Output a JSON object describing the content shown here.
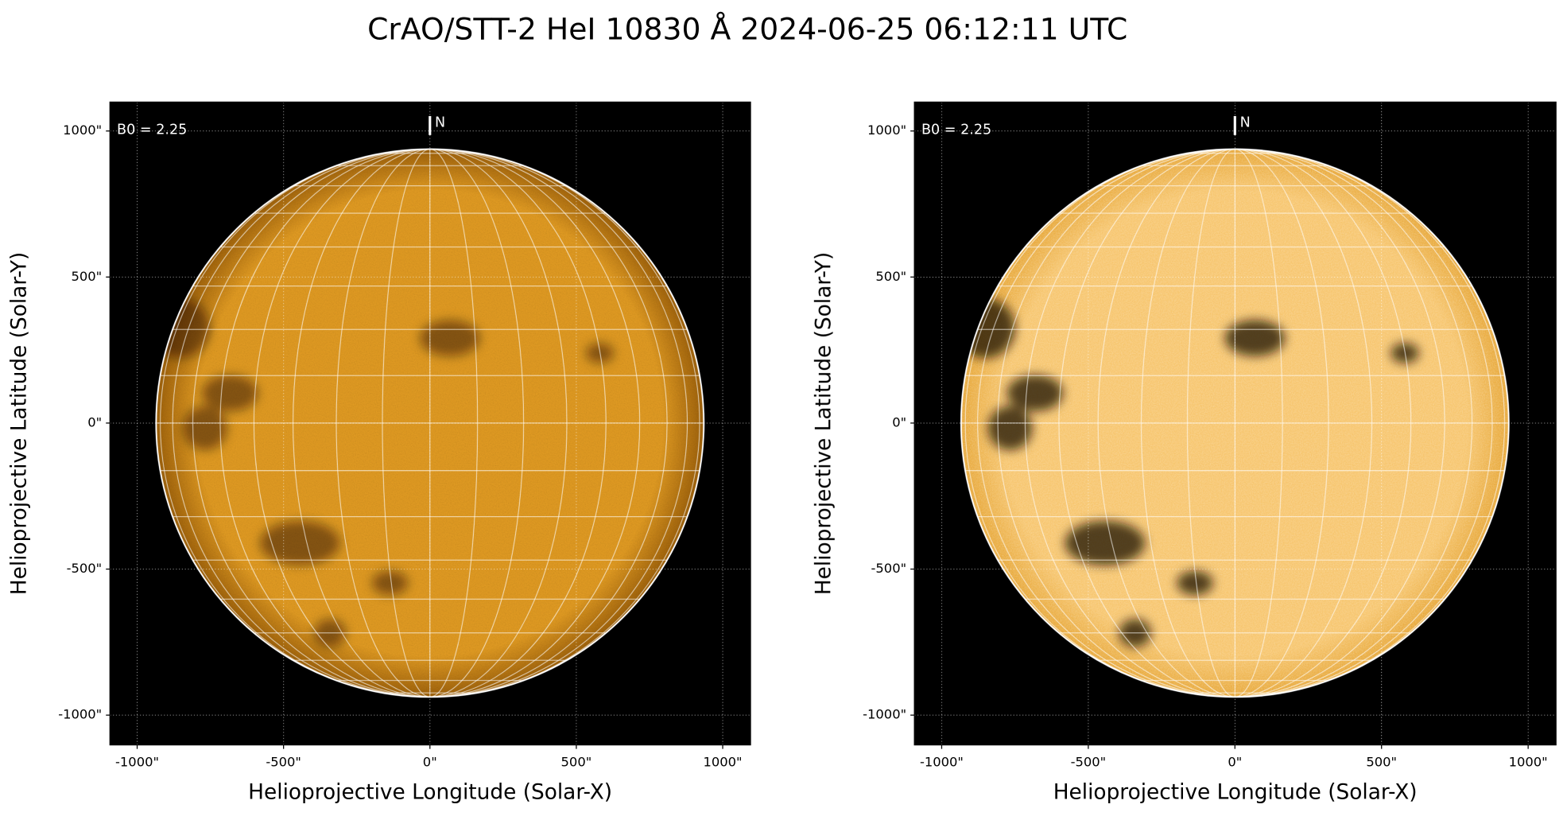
{
  "title": "CrAO/STT-2 HeI 10830 Å 2024-06-25 06:12:11 UTC",
  "chart_data": [
    {
      "type": "image",
      "xlabel": "Helioprojective Longitude (Solar-X)",
      "ylabel": "Helioprojective Latitude (Solar-Y)",
      "annotations": [
        "B0 = 2.25",
        "N"
      ],
      "xlim": [
        -1093,
        1095
      ],
      "ylim": [
        -1102,
        1099
      ],
      "xticks": [
        {
          "value": -1000,
          "label": "-1000\""
        },
        {
          "value": -500,
          "label": "-500\""
        },
        {
          "value": 0,
          "label": "0\""
        },
        {
          "value": 500,
          "label": "500\""
        },
        {
          "value": 1000,
          "label": "1000\""
        }
      ],
      "yticks": [
        {
          "value": -1000,
          "label": "-1000\""
        },
        {
          "value": -500,
          "label": "-500\""
        },
        {
          "value": 0,
          "label": "0\""
        },
        {
          "value": 500,
          "label": "500\""
        },
        {
          "value": 1000,
          "label": "1000\""
        }
      ],
      "grid": true,
      "colors": [
        "#e39c22",
        "#a0620a"
      ]
    },
    {
      "type": "image",
      "xlabel": "Helioprojective Longitude (Solar-X)",
      "ylabel": "Helioprojective Latitude (Solar-Y)",
      "annotations": [
        "B0 = 2.25",
        "N"
      ],
      "xlim": [
        -1093,
        1095
      ],
      "ylim": [
        -1102,
        1099
      ],
      "xticks": [
        {
          "value": -1000,
          "label": "-1000\""
        },
        {
          "value": -500,
          "label": "-500\""
        },
        {
          "value": 0,
          "label": "0\""
        },
        {
          "value": 500,
          "label": "500\""
        },
        {
          "value": 1000,
          "label": "1000\""
        }
      ],
      "yticks": [
        {
          "value": -1000,
          "label": "-1000\""
        },
        {
          "value": -500,
          "label": "-500\""
        },
        {
          "value": 0,
          "label": "0\""
        },
        {
          "value": 500,
          "label": "500\""
        },
        {
          "value": 1000,
          "label": "1000\""
        }
      ],
      "grid": true,
      "colors": [
        "#f6c060",
        "#e59f25"
      ]
    }
  ]
}
